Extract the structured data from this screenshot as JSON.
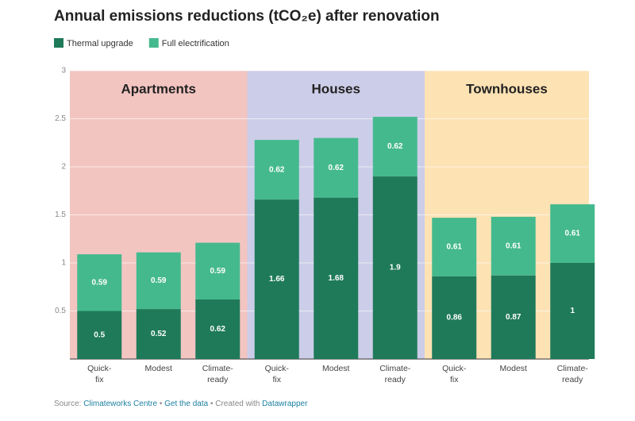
{
  "chart_data": {
    "type": "stacked-bar",
    "title": "Annual emissions reductions (tCO₂e) after renovation",
    "groups": [
      {
        "name": "Apartments",
        "color": "#f3c5c1",
        "categories": [
          "Quick-fix",
          "Modest",
          "Climate-ready"
        ]
      },
      {
        "name": "Houses",
        "color": "#cccde8",
        "categories": [
          "Quick-fix",
          "Modest",
          "Climate-ready"
        ]
      },
      {
        "name": "Townhouses",
        "color": "#fde2b4",
        "categories": [
          "Quick-fix",
          "Modest",
          "Climate-ready"
        ]
      }
    ],
    "series": [
      {
        "name": "Thermal upgrade",
        "color": "#1f7a5a",
        "values": [
          0.5,
          0.52,
          0.62,
          1.66,
          1.68,
          1.9,
          0.86,
          0.87,
          1
        ]
      },
      {
        "name": "Full electrification",
        "color": "#45b98e",
        "values": [
          0.59,
          0.59,
          0.59,
          0.62,
          0.62,
          0.62,
          0.61,
          0.61,
          0.61
        ]
      }
    ],
    "ylim": [
      0,
      3
    ],
    "yticks": [
      0.5,
      1,
      1.5,
      2,
      2.5,
      3
    ],
    "grid": true,
    "legend": "top-left"
  },
  "footer": {
    "source_label": "Source:",
    "source": "Climateworks Centre",
    "data_link": "Get the data",
    "created": "Created with",
    "tool": "Datawrapper"
  }
}
